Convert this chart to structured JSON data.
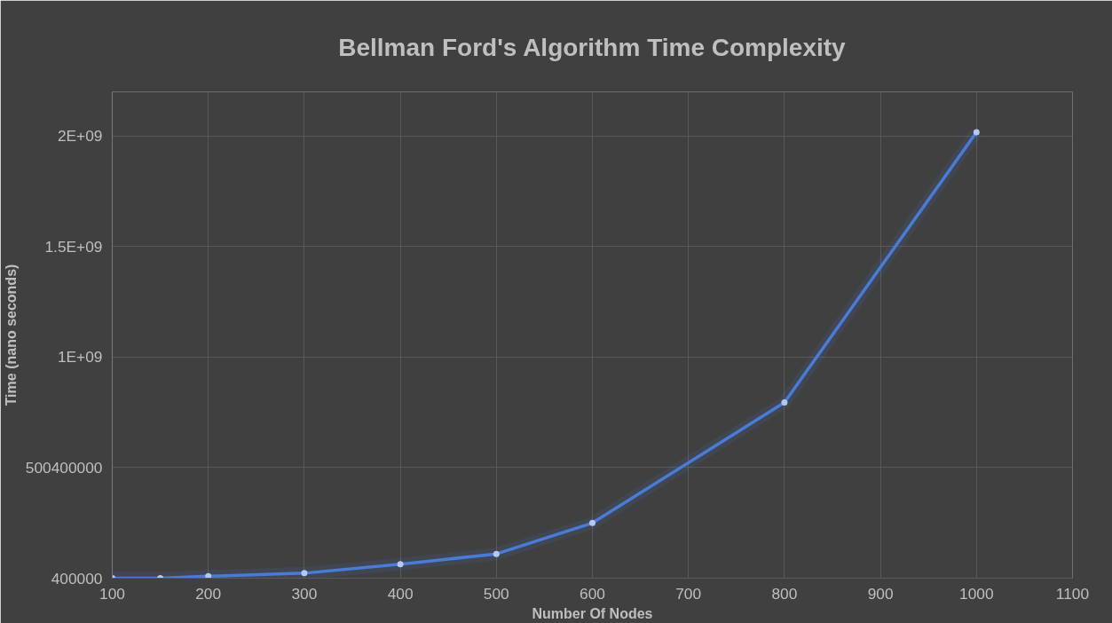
{
  "chart_data": {
    "type": "line",
    "title": "Bellman Ford's Algorithm Time Complexity",
    "xlabel": "Number Of Nodes",
    "ylabel": "Time (nano seconds)",
    "x": [
      100,
      150,
      200,
      300,
      400,
      500,
      600,
      800,
      1000
    ],
    "series": [
      {
        "color": "#4a7bd6",
        "values": [
          400000,
          400000,
          9000000,
          23000000,
          64000000,
          110000000,
          250000000,
          795000000,
          2018000000
        ]
      }
    ],
    "xlim": [
      100,
      1100
    ],
    "xticks": [
      100,
      200,
      300,
      400,
      500,
      600,
      700,
      800,
      900,
      1000,
      1100
    ],
    "ylim": [
      400000,
      2200400000
    ],
    "yticks": [
      {
        "value": 400000,
        "label": "400000"
      },
      {
        "value": 500400000,
        "label": "500400000"
      },
      {
        "value": 1000400000,
        "label": "1E+09"
      },
      {
        "value": 1500400000,
        "label": "1.5E+09"
      },
      {
        "value": 2000400000,
        "label": "2E+09"
      }
    ],
    "grid": true,
    "marker": "circle",
    "line_style": "solid"
  }
}
